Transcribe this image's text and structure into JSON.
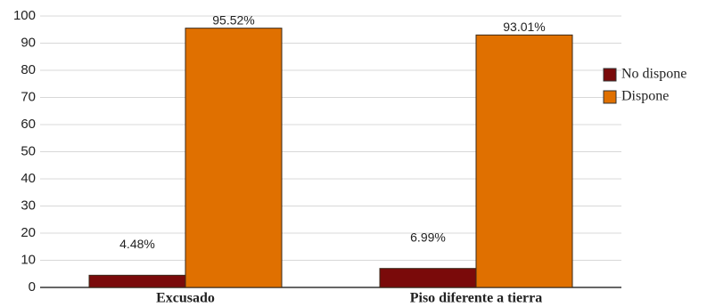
{
  "chart_data": {
    "type": "bar",
    "categories": [
      "Excusado",
      "Piso diferente a tierra"
    ],
    "series": [
      {
        "name": "No dispone",
        "color": "#7a0a0a",
        "values": [
          4.48,
          6.99
        ],
        "value_labels": [
          "4.48%",
          "6.99%"
        ]
      },
      {
        "name": "Dispone",
        "color": "#e07000",
        "values": [
          95.52,
          93.01
        ],
        "value_labels": [
          "95.52%",
          "93.01%"
        ]
      }
    ],
    "ylim": [
      0,
      100
    ],
    "yticks": [
      0,
      10,
      20,
      30,
      40,
      50,
      60,
      70,
      80,
      90,
      100
    ],
    "grid": true,
    "legend": "right"
  }
}
